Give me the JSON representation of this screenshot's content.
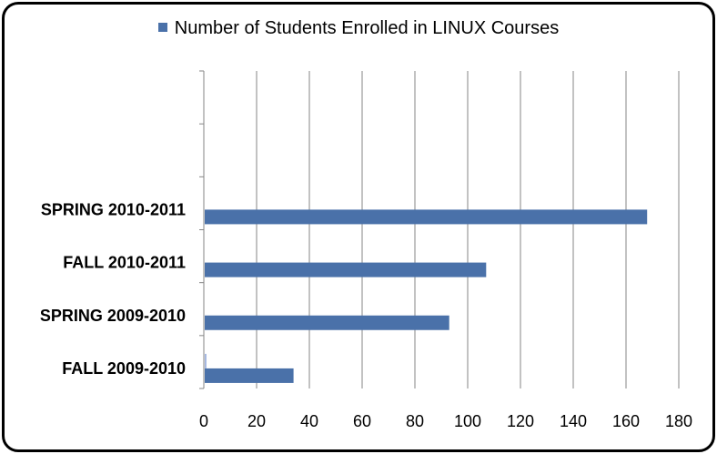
{
  "chart_data": {
    "type": "bar",
    "orientation": "horizontal",
    "categories": [
      "FALL 2009-2010",
      "SPRING 2009-2010",
      "FALL 2010-2011",
      "SPRING 2010-2011"
    ],
    "series": [
      {
        "name": "Number of Students Enrolled in LINUX Courses",
        "values": [
          34,
          93,
          107,
          168
        ],
        "color": "#4a71a9"
      },
      {
        "name": "",
        "values": [
          1,
          0,
          0,
          0
        ],
        "color": "#a3b6e0"
      }
    ],
    "empty_slots_above": 2,
    "title": "",
    "xlabel": "",
    "ylabel": "",
    "xlim": [
      0,
      180
    ],
    "x_ticks": [
      0,
      20,
      40,
      60,
      80,
      100,
      120,
      140,
      160,
      180
    ],
    "grid": "vertical",
    "legend": "top"
  }
}
